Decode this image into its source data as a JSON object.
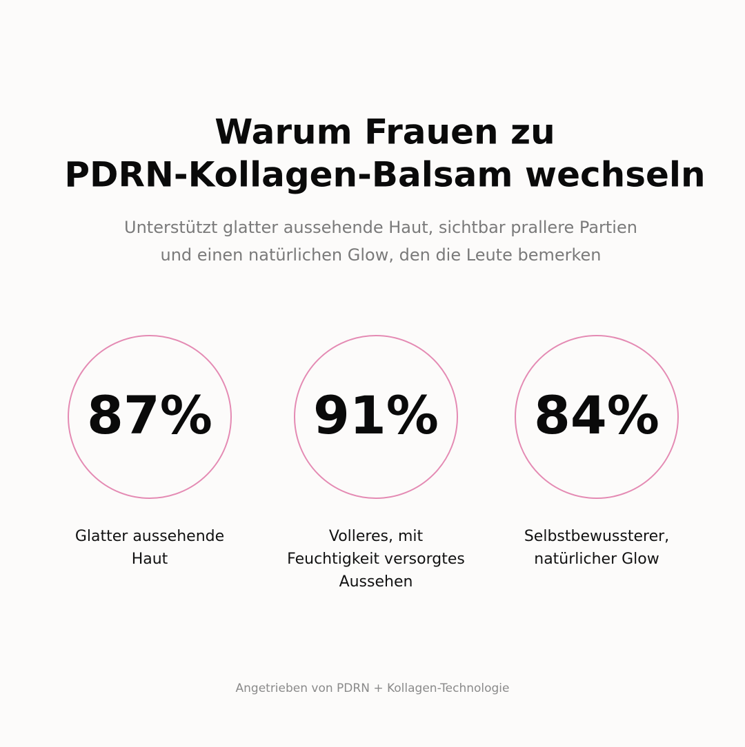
{
  "header": {
    "title_lines": [
      "Warum Frauen zu",
      "PDRN-Kollagen-Balsam wechseln"
    ],
    "subtitle_lines": [
      "Unterstützt glatter aussehende Haut, sichtbar prallere Partien",
      "und einen natürlichen Glow, den die Leute bemerken"
    ]
  },
  "stats": [
    {
      "value": "87%",
      "label_lines": [
        "Glatter aussehende",
        "Haut"
      ]
    },
    {
      "value": "91%",
      "label_lines": [
        "Volleres, mit",
        "Feuchtigkeit versorgtes",
        "Aussehen"
      ]
    },
    {
      "value": "84%",
      "label_lines": [
        "Selbstbewussterer,",
        "natürlicher Glow"
      ]
    }
  ],
  "footer": "Angetrieben von PDRN + Kollagen-Technologie"
}
